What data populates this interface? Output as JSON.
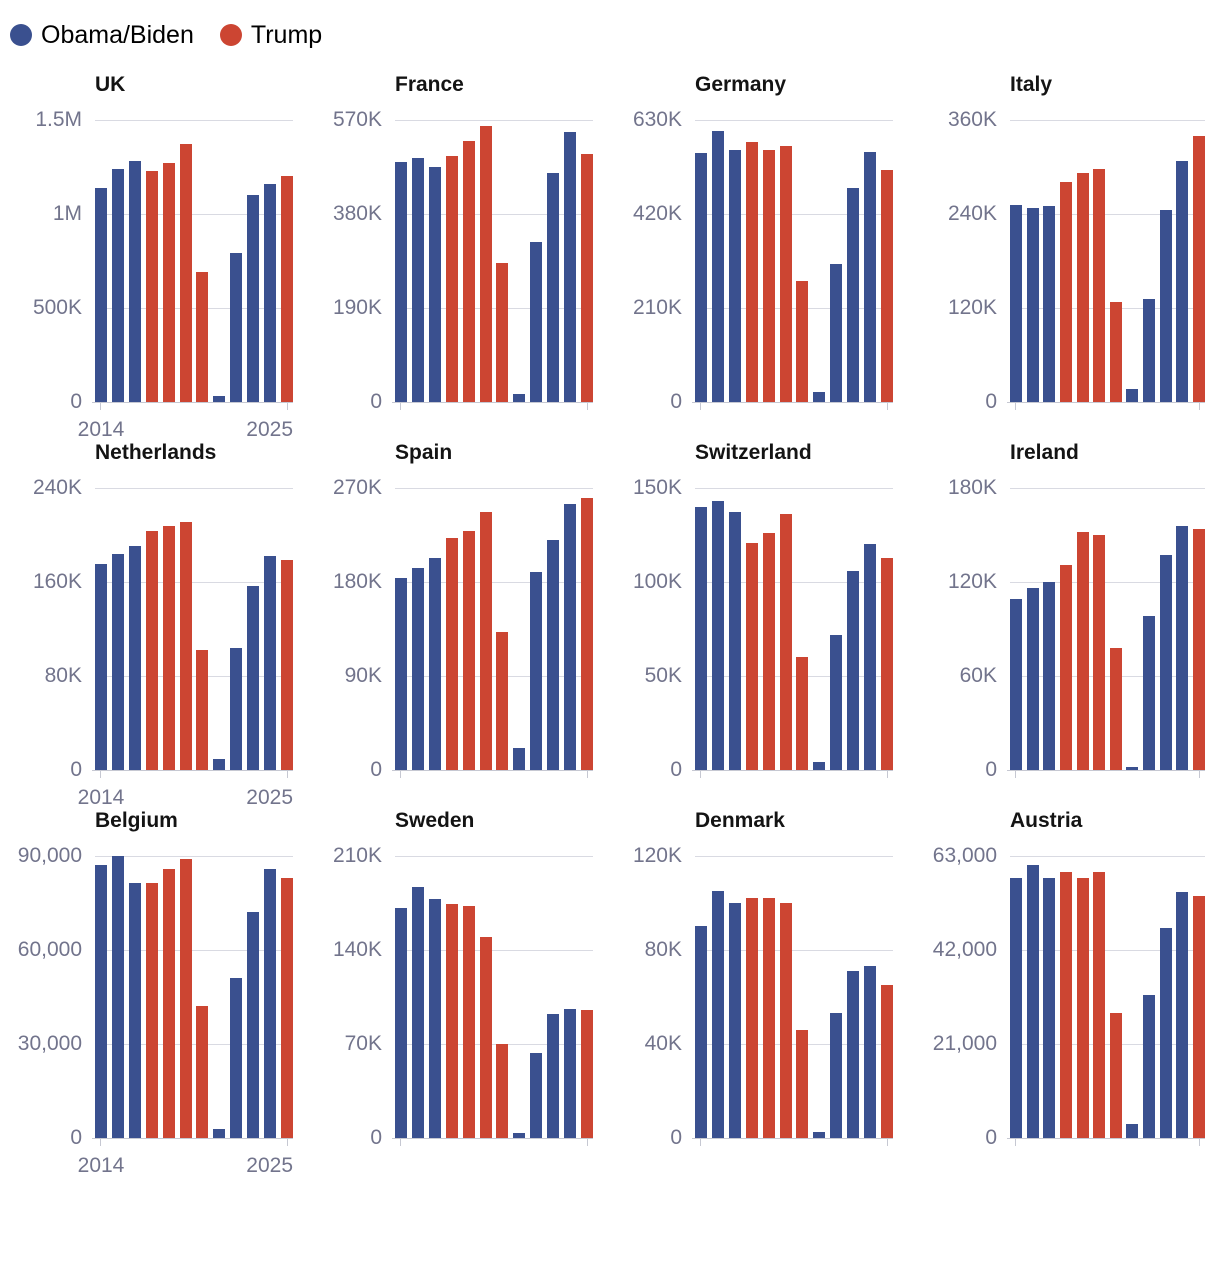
{
  "legend": {
    "items": [
      {
        "label": "Obama/Biden",
        "color": "#3A508F"
      },
      {
        "label": "Trump",
        "color": "#CC4532"
      }
    ]
  },
  "colors": {
    "dem": "#3A508F",
    "rep": "#CC4532",
    "axis_label": "#72748C",
    "gridline": "#D9DAE2",
    "baseline": "#C6C8D2",
    "title": "#141414"
  },
  "x_tick_labels": [
    "2014",
    "2025"
  ],
  "party_by_year": [
    "dem",
    "dem",
    "dem",
    "rep",
    "rep",
    "rep",
    "rep",
    "dem",
    "dem",
    "dem",
    "dem",
    "rep"
  ],
  "chart_data": [
    {
      "type": "bar",
      "title": "UK",
      "categories": [
        2014,
        2015,
        2016,
        2017,
        2018,
        2019,
        2020,
        2021,
        2022,
        2023,
        2024,
        2025
      ],
      "values": [
        1140000,
        1240000,
        1280000,
        1230000,
        1270000,
        1370000,
        690000,
        30000,
        790000,
        1100000,
        1160000,
        1200000
      ],
      "ylim": [
        0,
        1500000
      ],
      "y_ticks": [
        {
          "value": 0,
          "label": "0"
        },
        {
          "value": 500000,
          "label": "500K"
        },
        {
          "value": 1000000,
          "label": "1M"
        },
        {
          "value": 1500000,
          "label": "1.5M"
        }
      ],
      "show_x_labels": true
    },
    {
      "type": "bar",
      "title": "France",
      "categories": [
        2014,
        2015,
        2016,
        2017,
        2018,
        2019,
        2020,
        2021,
        2022,
        2023,
        2024,
        2025
      ],
      "values": [
        486000,
        494000,
        474000,
        498000,
        527000,
        558000,
        280000,
        17000,
        324000,
        462000,
        546000,
        501000
      ],
      "ylim": [
        0,
        570000
      ],
      "y_ticks": [
        {
          "value": 0,
          "label": "0"
        },
        {
          "value": 190000,
          "label": "190K"
        },
        {
          "value": 380000,
          "label": "380K"
        },
        {
          "value": 570000,
          "label": "570K"
        }
      ],
      "show_x_labels": false
    },
    {
      "type": "bar",
      "title": "Germany",
      "categories": [
        2014,
        2015,
        2016,
        2017,
        2018,
        2019,
        2020,
        2021,
        2022,
        2023,
        2024,
        2025
      ],
      "values": [
        557000,
        606000,
        563000,
        580000,
        563000,
        572000,
        271000,
        22000,
        309000,
        479000,
        558000,
        519000
      ],
      "ylim": [
        0,
        630000
      ],
      "y_ticks": [
        {
          "value": 0,
          "label": "0"
        },
        {
          "value": 210000,
          "label": "210K"
        },
        {
          "value": 420000,
          "label": "420K"
        },
        {
          "value": 630000,
          "label": "630K"
        }
      ],
      "show_x_labels": false
    },
    {
      "type": "bar",
      "title": "Italy",
      "categories": [
        2014,
        2015,
        2016,
        2017,
        2018,
        2019,
        2020,
        2021,
        2022,
        2023,
        2024,
        2025
      ],
      "values": [
        251000,
        248000,
        250000,
        281000,
        292000,
        297000,
        128000,
        16000,
        132000,
        245000,
        308000,
        339000
      ],
      "ylim": [
        0,
        360000
      ],
      "y_ticks": [
        {
          "value": 0,
          "label": "0"
        },
        {
          "value": 120000,
          "label": "120K"
        },
        {
          "value": 240000,
          "label": "240K"
        },
        {
          "value": 360000,
          "label": "360K"
        }
      ],
      "show_x_labels": false
    },
    {
      "type": "bar",
      "title": "Netherlands",
      "categories": [
        2014,
        2015,
        2016,
        2017,
        2018,
        2019,
        2020,
        2021,
        2022,
        2023,
        2024,
        2025
      ],
      "values": [
        175000,
        184000,
        191000,
        203000,
        208000,
        211000,
        102000,
        9000,
        104000,
        157000,
        182000,
        179000
      ],
      "ylim": [
        0,
        240000
      ],
      "y_ticks": [
        {
          "value": 0,
          "label": "0"
        },
        {
          "value": 80000,
          "label": "80K"
        },
        {
          "value": 160000,
          "label": "160K"
        },
        {
          "value": 240000,
          "label": "240K"
        }
      ],
      "show_x_labels": true
    },
    {
      "type": "bar",
      "title": "Spain",
      "categories": [
        2014,
        2015,
        2016,
        2017,
        2018,
        2019,
        2020,
        2021,
        2022,
        2023,
        2024,
        2025
      ],
      "values": [
        184000,
        193000,
        203000,
        222000,
        229000,
        247000,
        132000,
        21000,
        190000,
        220000,
        255000,
        260000
      ],
      "ylim": [
        0,
        270000
      ],
      "y_ticks": [
        {
          "value": 0,
          "label": "0"
        },
        {
          "value": 90000,
          "label": "90K"
        },
        {
          "value": 180000,
          "label": "180K"
        },
        {
          "value": 270000,
          "label": "270K"
        }
      ],
      "show_x_labels": false
    },
    {
      "type": "bar",
      "title": "Switzerland",
      "categories": [
        2014,
        2015,
        2016,
        2017,
        2018,
        2019,
        2020,
        2021,
        2022,
        2023,
        2024,
        2025
      ],
      "values": [
        140000,
        143000,
        137000,
        121000,
        126000,
        136000,
        60000,
        4500,
        72000,
        106000,
        120000,
        113000
      ],
      "ylim": [
        0,
        150000
      ],
      "y_ticks": [
        {
          "value": 0,
          "label": "0"
        },
        {
          "value": 50000,
          "label": "50K"
        },
        {
          "value": 100000,
          "label": "100K"
        },
        {
          "value": 150000,
          "label": "150K"
        }
      ],
      "show_x_labels": false
    },
    {
      "type": "bar",
      "title": "Ireland",
      "categories": [
        2014,
        2015,
        2016,
        2017,
        2018,
        2019,
        2020,
        2021,
        2022,
        2023,
        2024,
        2025
      ],
      "values": [
        109000,
        116000,
        120000,
        131000,
        152000,
        150000,
        78000,
        2000,
        98000,
        137000,
        156000,
        154000
      ],
      "ylim": [
        0,
        180000
      ],
      "y_ticks": [
        {
          "value": 0,
          "label": "0"
        },
        {
          "value": 60000,
          "label": "60K"
        },
        {
          "value": 120000,
          "label": "120K"
        },
        {
          "value": 180000,
          "label": "180K"
        }
      ],
      "show_x_labels": false
    },
    {
      "type": "bar",
      "title": "Belgium",
      "categories": [
        2014,
        2015,
        2016,
        2017,
        2018,
        2019,
        2020,
        2021,
        2022,
        2023,
        2024,
        2025
      ],
      "values": [
        87000,
        90000,
        81500,
        81500,
        86000,
        89000,
        42000,
        3000,
        51000,
        72000,
        86000,
        83000
      ],
      "ylim": [
        0,
        90000
      ],
      "y_ticks": [
        {
          "value": 0,
          "label": "0"
        },
        {
          "value": 30000,
          "label": "30,000"
        },
        {
          "value": 60000,
          "label": "60,000"
        },
        {
          "value": 90000,
          "label": "90,000"
        }
      ],
      "show_x_labels": true
    },
    {
      "type": "bar",
      "title": "Sweden",
      "categories": [
        2014,
        2015,
        2016,
        2017,
        2018,
        2019,
        2020,
        2021,
        2022,
        2023,
        2024,
        2025
      ],
      "values": [
        171000,
        187000,
        178000,
        174000,
        173000,
        150000,
        70000,
        4000,
        63000,
        92000,
        96000,
        95000
      ],
      "ylim": [
        0,
        210000
      ],
      "y_ticks": [
        {
          "value": 0,
          "label": "0"
        },
        {
          "value": 70000,
          "label": "70K"
        },
        {
          "value": 140000,
          "label": "140K"
        },
        {
          "value": 210000,
          "label": "210K"
        }
      ],
      "show_x_labels": false
    },
    {
      "type": "bar",
      "title": "Denmark",
      "categories": [
        2014,
        2015,
        2016,
        2017,
        2018,
        2019,
        2020,
        2021,
        2022,
        2023,
        2024,
        2025
      ],
      "values": [
        90000,
        105000,
        100000,
        102000,
        102000,
        100000,
        46000,
        2500,
        53000,
        71000,
        73000,
        65000
      ],
      "ylim": [
        0,
        120000
      ],
      "y_ticks": [
        {
          "value": 0,
          "label": "0"
        },
        {
          "value": 40000,
          "label": "40K"
        },
        {
          "value": 80000,
          "label": "80K"
        },
        {
          "value": 120000,
          "label": "120K"
        }
      ],
      "show_x_labels": false
    },
    {
      "type": "bar",
      "title": "Austria",
      "categories": [
        2014,
        2015,
        2016,
        2017,
        2018,
        2019,
        2020,
        2021,
        2022,
        2023,
        2024,
        2025
      ],
      "values": [
        58000,
        61000,
        58000,
        59500,
        58000,
        59500,
        28000,
        3200,
        32000,
        47000,
        55000,
        54000
      ],
      "ylim": [
        0,
        63000
      ],
      "y_ticks": [
        {
          "value": 0,
          "label": "0"
        },
        {
          "value": 21000,
          "label": "21,000"
        },
        {
          "value": 42000,
          "label": "42,000"
        },
        {
          "value": 63000,
          "label": "63,000"
        }
      ],
      "show_x_labels": false
    }
  ]
}
